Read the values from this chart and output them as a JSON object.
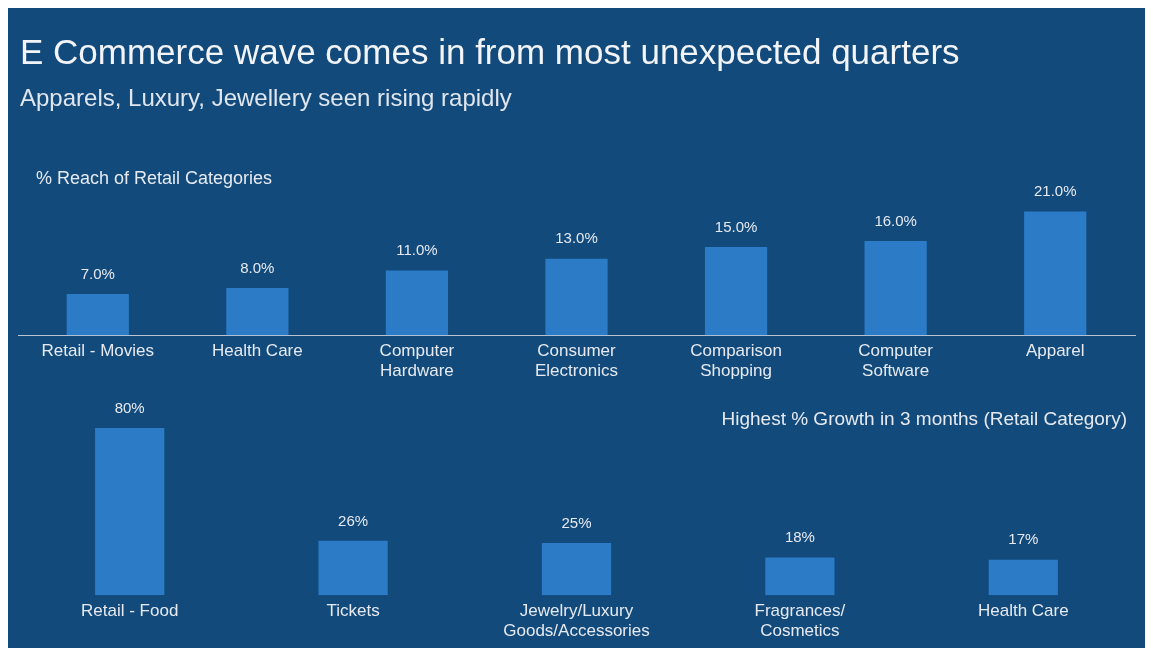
{
  "chart_data": [
    {
      "type": "bar",
      "title": "E Commerce wave comes in from most unexpected quarters",
      "subtitle": "Apparels, Luxury, Jewellery seen rising rapidly",
      "annotations": [
        "% Reach of Retail Categories"
      ],
      "categories": [
        "Retail - Movies",
        "Health Care",
        "Computer Hardware",
        "Consumer Electronics",
        "Comparison Shopping",
        "Computer Software",
        "Apparel"
      ],
      "values": [
        7.0,
        8.0,
        11.0,
        13.0,
        15.0,
        16.0,
        21.0
      ],
      "color": "#2b7bc6",
      "value_labels": [
        "7.0%",
        "8.0%",
        "11.0%",
        "13.0%",
        "15.0%",
        "16.0%",
        "21.0%"
      ]
    },
    {
      "type": "bar",
      "title": "Highest % Growth in 3 months (Retail Category)",
      "categories": [
        "Retail - Food",
        "Tickets",
        "Jewelry/Luxury Goods/Accessories",
        "Fragrances/ Cosmetics",
        "Health Care"
      ],
      "values": [
        80,
        26,
        25,
        18,
        17
      ],
      "color": "#2b7bc6",
      "value_labels": [
        "80%",
        "26%",
        "25%",
        "18%",
        "17%"
      ]
    }
  ]
}
